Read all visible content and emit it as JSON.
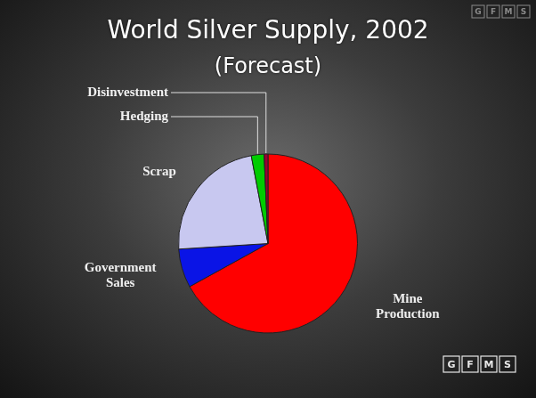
{
  "chart_data": {
    "type": "pie",
    "title": "World Silver Supply, 2002",
    "subtitle": "(Forecast)",
    "categories": [
      "Mine Production",
      "Government Sales",
      "Scrap",
      "Hedging",
      "Disinvestment"
    ],
    "values": [
      67,
      7,
      23,
      2.3,
      0.7
    ],
    "colors": [
      "#ff0000",
      "#0a14e6",
      "#c8c8f0",
      "#00cc00",
      "#990033"
    ],
    "annotations": [
      "GFMS",
      "GFMS"
    ]
  }
}
